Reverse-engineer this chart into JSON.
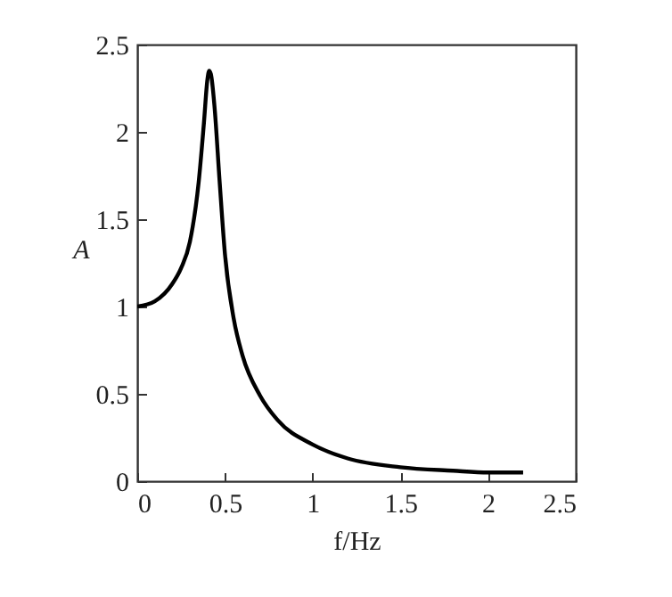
{
  "chart_data": {
    "type": "line",
    "xlabel": "f/Hz",
    "ylabel": "A",
    "x": [
      0,
      0.1,
      0.2,
      0.25,
      0.3,
      0.35,
      0.38,
      0.4,
      0.41,
      0.42,
      0.44,
      0.47,
      0.5,
      0.55,
      0.6,
      0.7,
      0.8,
      1.0,
      1.2,
      1.5,
      1.8,
      2.0,
      2.2
    ],
    "series": [
      {
        "color": "#000000",
        "values": [
          1.0,
          1.03,
          1.13,
          1.22,
          1.37,
          1.71,
          2.05,
          2.3,
          2.35,
          2.33,
          2.15,
          1.71,
          1.3,
          0.93,
          0.72,
          0.49,
          0.35,
          0.21,
          0.13,
          0.08,
          0.06,
          0.05,
          0.05
        ]
      }
    ],
    "xlim": [
      0,
      2.5
    ],
    "xticks": [
      0,
      0.5,
      1,
      1.5,
      2,
      2.5
    ],
    "ylim": [
      0,
      2.5
    ],
    "yticks": [
      0,
      0.5,
      1,
      1.5,
      2,
      2.5
    ],
    "grid": false,
    "legend": false,
    "marker": "none",
    "line_style": "solid"
  }
}
